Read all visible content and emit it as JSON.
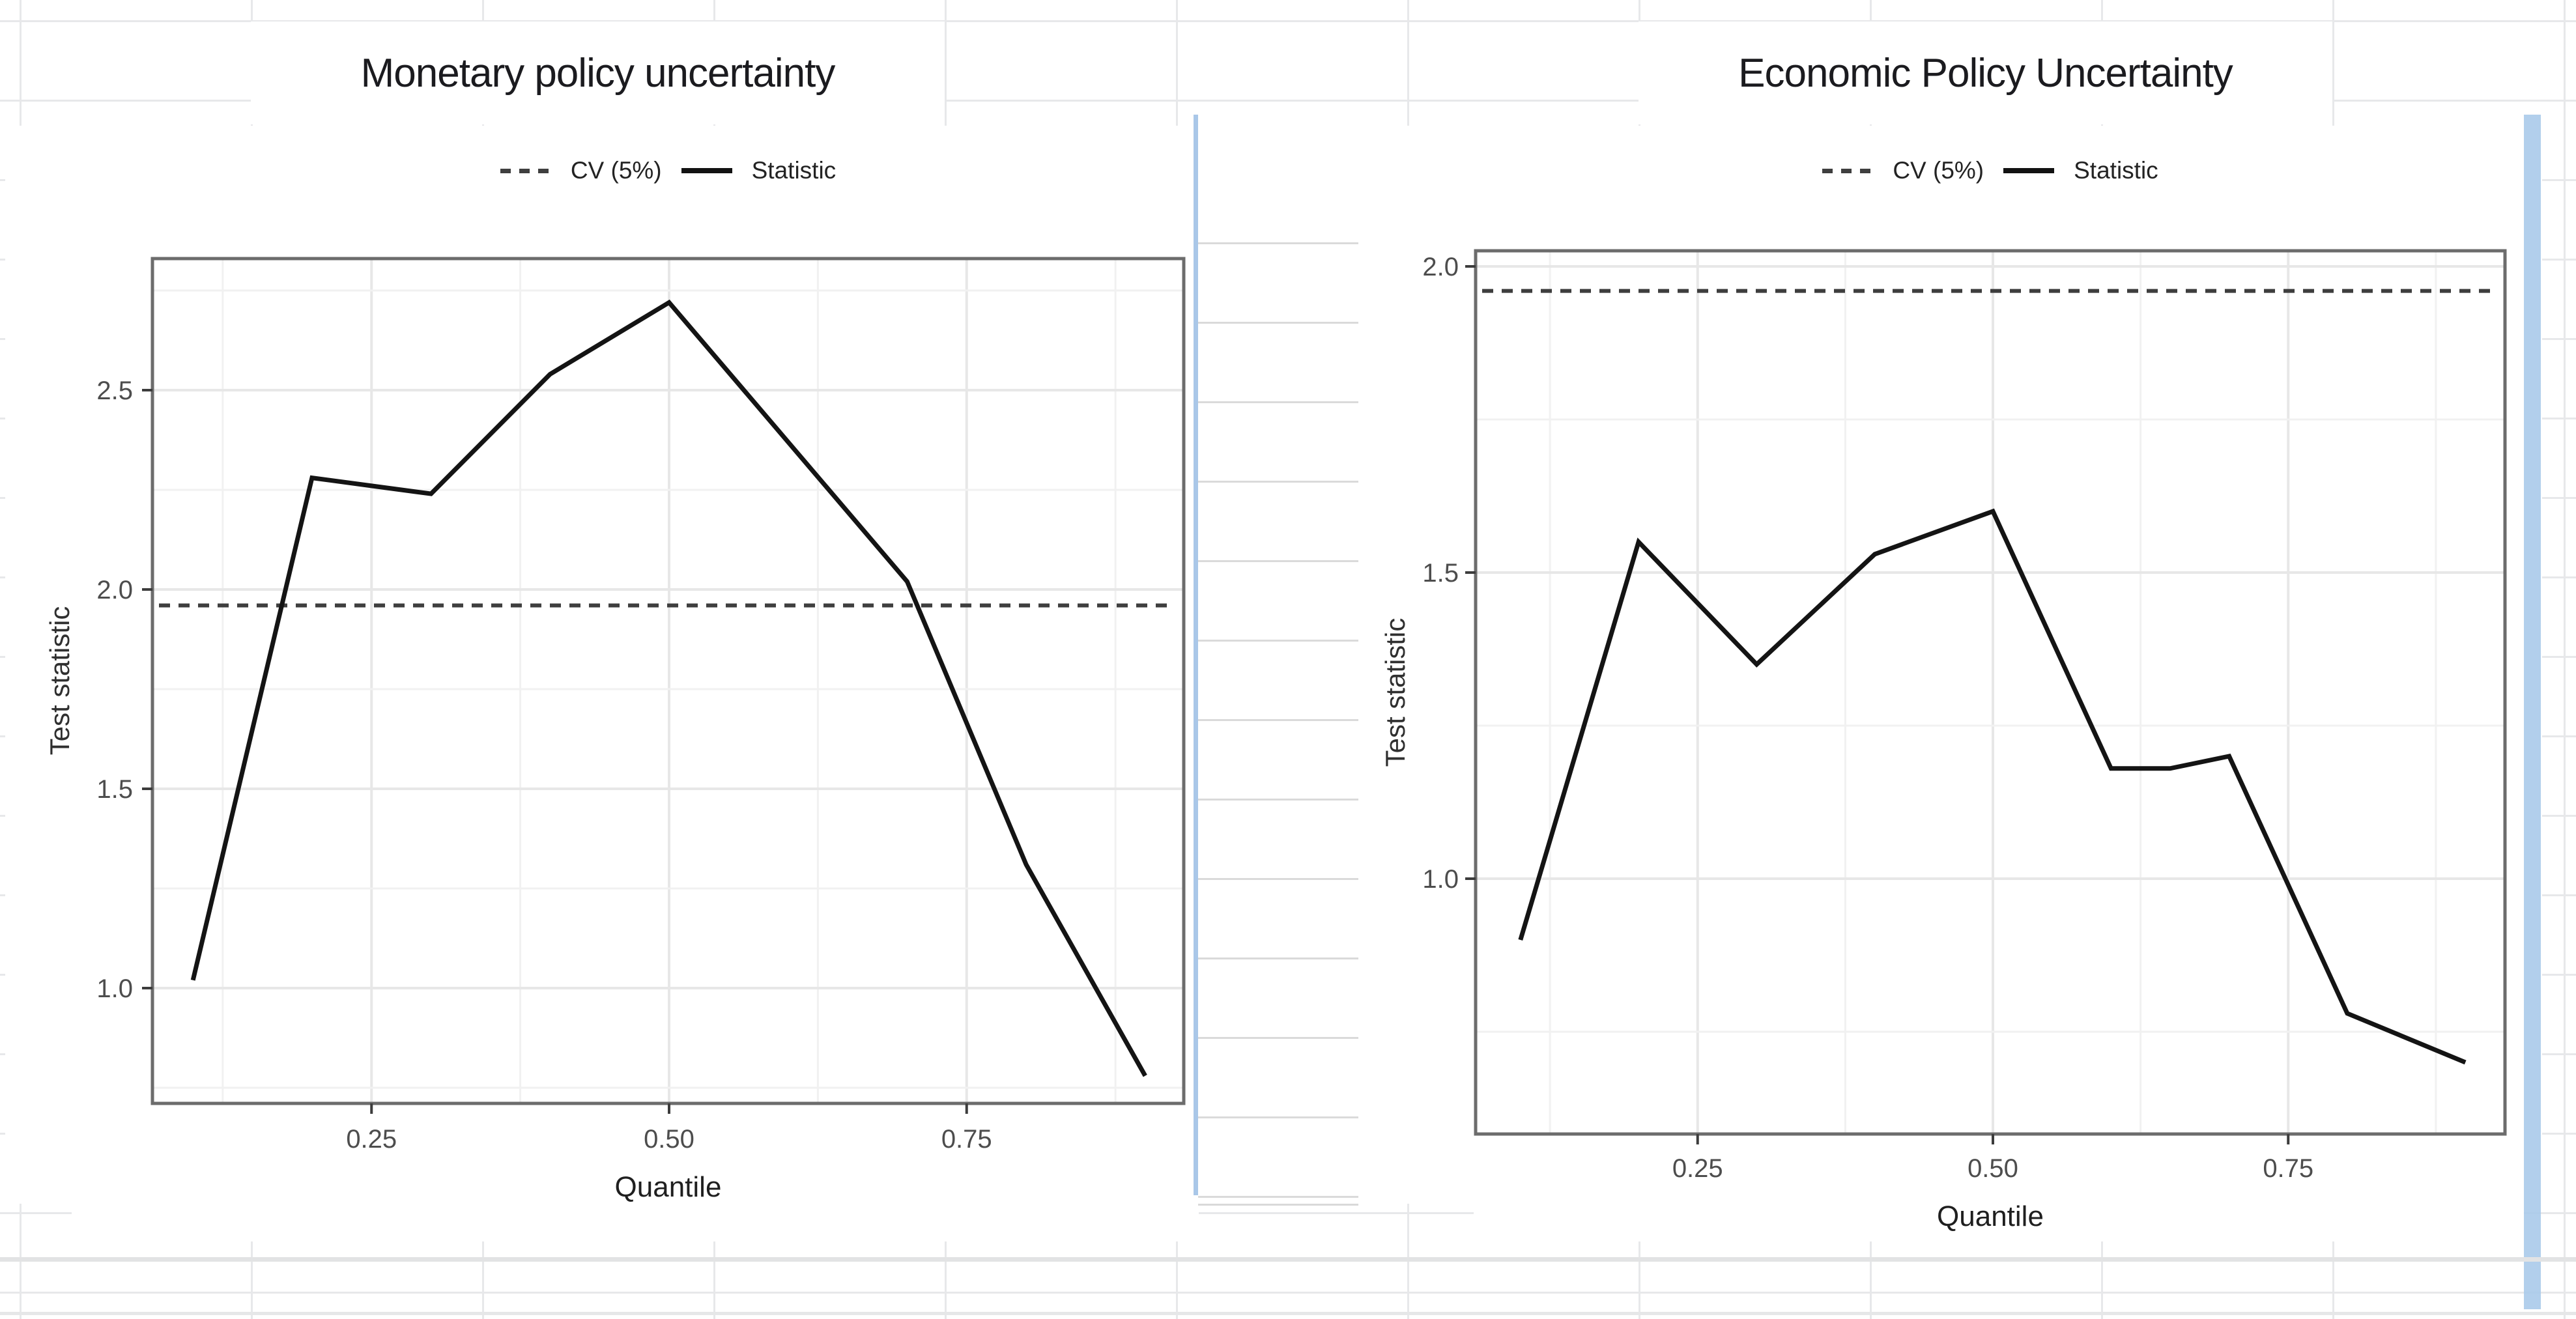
{
  "colors": {
    "accent_blue": "#a9c7e8",
    "statistic_line": "#141414",
    "cv_dash": "#3e3e3e",
    "grid_major": "#e7e7e7",
    "grid_minor": "#f1f1f1",
    "panel_border": "#6c6c6c",
    "tick_text": "#4d4d4d",
    "sheet_grid": "#e7e8ea"
  },
  "chart_data": [
    {
      "type": "line",
      "title": "Monetary policy uncertainty",
      "xlabel": "Quantile",
      "ylabel": "Test statistic",
      "x": [
        0.1,
        0.2,
        0.25,
        0.3,
        0.4,
        0.5,
        0.6,
        0.7,
        0.8,
        0.9
      ],
      "series": [
        {
          "name": "CV (5%)",
          "style": "dashed",
          "value": 1.96
        },
        {
          "name": "Statistic",
          "style": "solid",
          "values": [
            1.02,
            2.28,
            2.26,
            2.24,
            2.54,
            2.72,
            2.37,
            2.02,
            1.31,
            0.78
          ]
        }
      ],
      "xticks": {
        "values": [
          0.25,
          0.5,
          0.75
        ],
        "labels": [
          "0.25",
          "0.50",
          "0.75"
        ]
      },
      "yticks": {
        "values": [
          1.0,
          1.5,
          2.0,
          2.5
        ],
        "labels": [
          "1.0",
          "1.5",
          "2.0",
          "2.5"
        ]
      },
      "xlim": [
        0.066,
        0.932
      ],
      "ylim": [
        0.72,
        2.82
      ],
      "grid": true,
      "legend_position": "top"
    },
    {
      "type": "line",
      "title": "Economic Policy Uncertainty",
      "xlabel": "Quantile",
      "ylabel": "Test statistic",
      "x": [
        0.1,
        0.2,
        0.3,
        0.4,
        0.5,
        0.6,
        0.65,
        0.7,
        0.8,
        0.9
      ],
      "series": [
        {
          "name": "CV (5%)",
          "style": "dashed",
          "value": 1.96
        },
        {
          "name": "Statistic",
          "style": "solid",
          "values": [
            0.9,
            1.55,
            1.35,
            1.53,
            1.6,
            1.18,
            1.18,
            1.2,
            0.78,
            0.7
          ]
        }
      ],
      "xticks": {
        "values": [
          0.25,
          0.5,
          0.75
        ],
        "labels": [
          "0.25",
          "0.50",
          "0.75"
        ]
      },
      "yticks": {
        "values": [
          1.0,
          1.5,
          2.0
        ],
        "labels": [
          "1.0",
          "1.5",
          "2.0"
        ]
      },
      "xlim": [
        0.062,
        0.933
      ],
      "ylim": [
        0.585,
        2.025
      ],
      "grid": true,
      "legend_position": "top"
    }
  ]
}
